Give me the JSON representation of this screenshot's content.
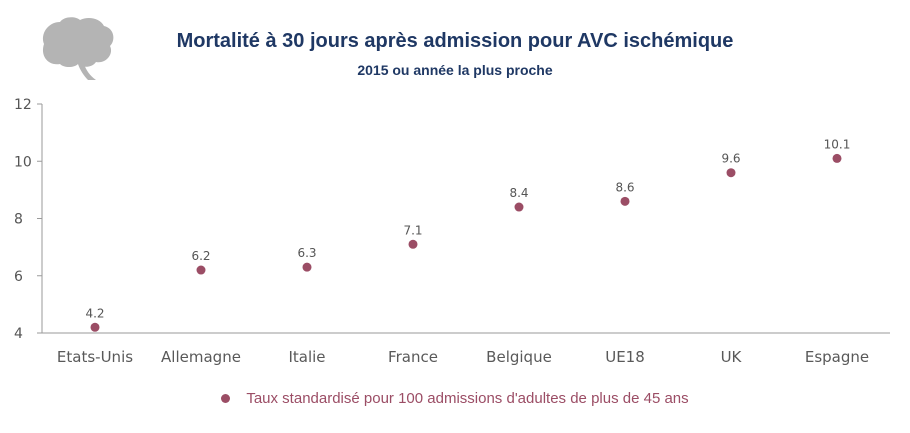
{
  "header": {
    "title": "Mortalité à 30 jours après admission pour AVC ischémique",
    "subtitle": "2015 ou année la plus proche",
    "icon": "brain-icon"
  },
  "colors": {
    "marker": "#9b4d65",
    "axis": "#9a9a9a",
    "title": "#1f3864"
  },
  "legend": {
    "label": "Taux standardisé pour 100 admissions d'adultes de plus de 45 ans"
  },
  "chart_data": {
    "type": "scatter",
    "title": "Mortalité à 30 jours après admission pour AVC ischémique",
    "subtitle": "2015 ou année la plus proche",
    "categories": [
      "Etats-Unis",
      "Allemagne",
      "Italie",
      "France",
      "Belgique",
      "UE18",
      "UK",
      "Espagne"
    ],
    "series": [
      {
        "name": "Taux standardisé pour 100 admissions d'adultes de plus de 45 ans",
        "values": [
          4.2,
          6.2,
          6.3,
          7.1,
          8.4,
          8.6,
          9.6,
          10.1
        ],
        "labels": [
          "4.2",
          "6.2",
          "6.3",
          "7.1",
          "8.4",
          "8.6",
          "9.6",
          "10.1"
        ]
      }
    ],
    "ylim": [
      4,
      12
    ],
    "yticks": [
      "4",
      "6",
      "8",
      "10",
      "12"
    ],
    "grid": false,
    "legend_position": "bottom"
  }
}
